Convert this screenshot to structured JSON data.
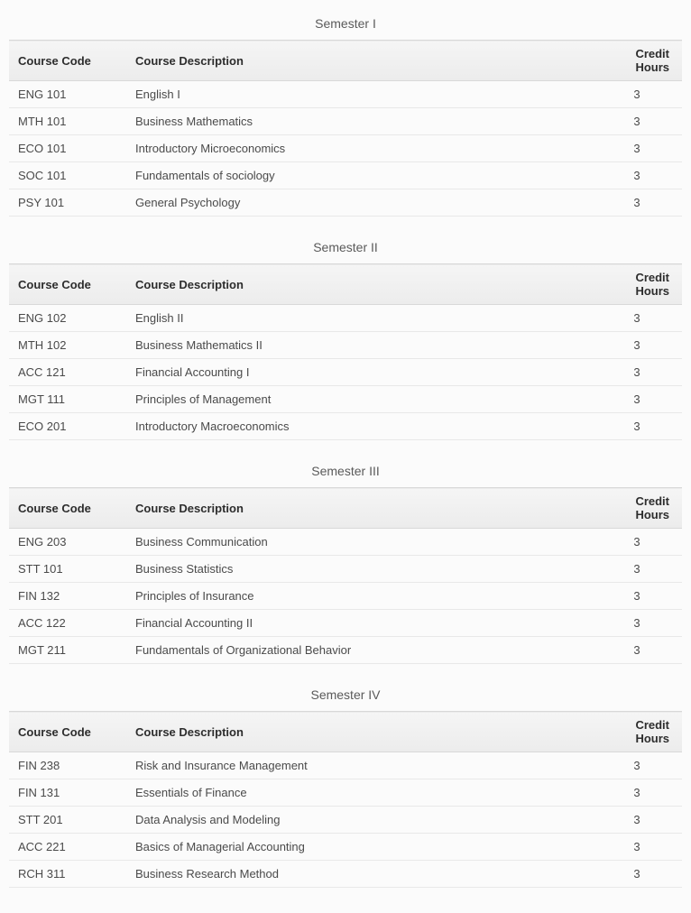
{
  "columns": {
    "code": "Course Code",
    "desc": "Course Description",
    "credit": "Credit Hours"
  },
  "semesters": [
    {
      "title": "Semester I",
      "courses": [
        {
          "code": "ENG 101",
          "desc": "English I",
          "credit": "3"
        },
        {
          "code": "MTH 101",
          "desc": "Business Mathematics",
          "credit": "3"
        },
        {
          "code": "ECO 101",
          "desc": "Introductory Microeconomics",
          "credit": "3"
        },
        {
          "code": "SOC 101",
          "desc": "Fundamentals of sociology",
          "credit": "3"
        },
        {
          "code": "PSY 101",
          "desc": "General Psychology",
          "credit": "3"
        }
      ]
    },
    {
      "title": "Semester II",
      "courses": [
        {
          "code": "ENG 102",
          "desc": "English II",
          "credit": "3"
        },
        {
          "code": "MTH 102",
          "desc": "Business Mathematics II",
          "credit": "3"
        },
        {
          "code": "ACC 121",
          "desc": "Financial Accounting I",
          "credit": "3"
        },
        {
          "code": "MGT 111",
          "desc": "Principles of Management",
          "credit": "3"
        },
        {
          "code": "ECO 201",
          "desc": "Introductory Macroeconomics",
          "credit": "3"
        }
      ]
    },
    {
      "title": "Semester III",
      "courses": [
        {
          "code": "ENG 203",
          "desc": "Business Communication",
          "credit": "3"
        },
        {
          "code": "STT 101",
          "desc": "Business Statistics",
          "credit": "3"
        },
        {
          "code": "FIN 132",
          "desc": "Principles of Insurance",
          "credit": "3"
        },
        {
          "code": "ACC 122",
          "desc": "Financial Accounting II",
          "credit": "3"
        },
        {
          "code": "MGT 211",
          "desc": "Fundamentals of Organizational Behavior",
          "credit": "3"
        }
      ]
    },
    {
      "title": "Semester IV",
      "courses": [
        {
          "code": "FIN 238",
          "desc": "Risk and Insurance Management",
          "credit": "3"
        },
        {
          "code": "FIN 131",
          "desc": "Essentials of Finance",
          "credit": "3"
        },
        {
          "code": "STT 201",
          "desc": "Data Analysis and Modeling",
          "credit": "3"
        },
        {
          "code": "ACC 221",
          "desc": "Basics of Managerial Accounting",
          "credit": "3"
        },
        {
          "code": "RCH 311",
          "desc": "Business Research Method",
          "credit": "3"
        }
      ]
    }
  ],
  "styling": {
    "background_color": "#fbfbfb",
    "text_color": "#3a3a3a",
    "header_bg_top": "#f5f5f5",
    "header_bg_bottom": "#ececec",
    "header_border": "#d8d8d8",
    "row_border": "#e8e8e8",
    "font_size_body": 13,
    "font_size_title": 14,
    "col_code_width": 130,
    "col_credit_width": 100
  }
}
